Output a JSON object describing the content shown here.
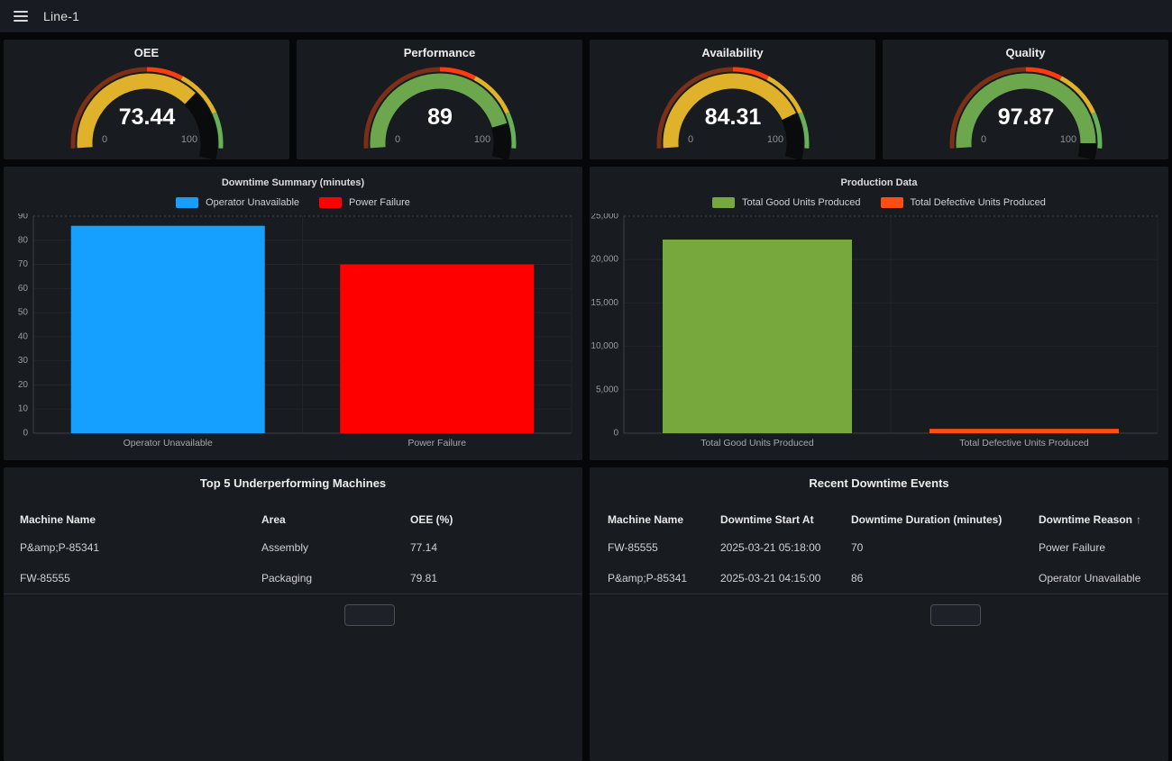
{
  "nav": {
    "title": "Line-1",
    "menu_icon": "hamburger-icon"
  },
  "gauges": {
    "min_label": "0",
    "max_label": "100",
    "thresholds": [
      {
        "value": 0,
        "color": "#7B2F17"
      },
      {
        "value": 50,
        "color": "#FF3B10"
      },
      {
        "value": 65,
        "color": "#E0B12A"
      },
      {
        "value": 85,
        "color": "#67B157"
      }
    ],
    "items": [
      {
        "title": "OEE",
        "display": "73.44",
        "value": 73.44,
        "color": "#E0B12A"
      },
      {
        "title": "Performance",
        "display": "89",
        "value": 89,
        "color": "#6CA74E"
      },
      {
        "title": "Availability",
        "display": "84.31",
        "value": 84.31,
        "color": "#E0B12A"
      },
      {
        "title": "Quality",
        "display": "97.87",
        "value": 97.87,
        "color": "#6CA74E"
      }
    ]
  },
  "chart_data": [
    {
      "type": "bar",
      "title": "Downtime Summary (minutes)",
      "categories": [
        "Operator Unavailable",
        "Power Failure"
      ],
      "values": [
        86,
        70
      ],
      "bar_colors": [
        "#159FFF",
        "#FF0000"
      ],
      "legend": [
        {
          "label": "Operator Unavailable",
          "color": "#159FFF"
        },
        {
          "label": "Power Failure",
          "color": "#FF0000"
        }
      ],
      "legend_position": "top",
      "grid": true,
      "xlabel": "",
      "ylabel": "",
      "ylim": [
        0,
        90
      ],
      "ytick_step": 10,
      "ytick_labels": [
        "0",
        "10",
        "20",
        "30",
        "40",
        "50",
        "60",
        "70",
        "80",
        "90"
      ]
    },
    {
      "type": "bar",
      "title": "Production Data",
      "categories": [
        "Total Good Units Produced",
        "Total Defective Units Produced"
      ],
      "values": [
        22300,
        500
      ],
      "bar_colors": [
        "#76A83E",
        "#FF4E11"
      ],
      "legend": [
        {
          "label": "Total Good Units Produced",
          "color": "#76A83E"
        },
        {
          "label": "Total Defective Units Produced",
          "color": "#FF4E11"
        }
      ],
      "legend_position": "top",
      "grid": true,
      "xlabel": "",
      "ylabel": "",
      "ylim": [
        0,
        25000
      ],
      "ytick_step": 5000,
      "ytick_labels": [
        "0",
        "5,000",
        "10,000",
        "15,000",
        "20,000",
        "25,000"
      ]
    }
  ],
  "tables": [
    {
      "title": "Top 5 Underperforming Machines",
      "columns": [
        {
          "label": "Machine Name"
        },
        {
          "label": "Area"
        },
        {
          "label": "OEE (%)"
        }
      ],
      "rows": [
        [
          "P&amp;P-85341",
          "Assembly",
          "77.14"
        ],
        [
          "FW-85555",
          "Packaging",
          "79.81"
        ]
      ]
    },
    {
      "title": "Recent Downtime Events",
      "columns": [
        {
          "label": "Machine Name"
        },
        {
          "label": "Downtime Start At"
        },
        {
          "label": "Downtime Duration (minutes)"
        },
        {
          "label": "Downtime Reason",
          "sorted": "asc",
          "sort_icon": "↑"
        }
      ],
      "rows": [
        [
          "FW-85555",
          "2025-03-21 05:18:00",
          "70",
          "Power Failure"
        ],
        [
          "P&amp;P-85341",
          "2025-03-21 04:15:00",
          "86",
          "Operator Unavailable"
        ]
      ]
    }
  ],
  "colors": {
    "nav_bg": "#181b22",
    "panel_bg": "#181b20",
    "page_bg": "#060708",
    "gauge_remainder": "#0a0b0c",
    "grid_line": "#23252b",
    "axis_line": "#3d4046"
  }
}
